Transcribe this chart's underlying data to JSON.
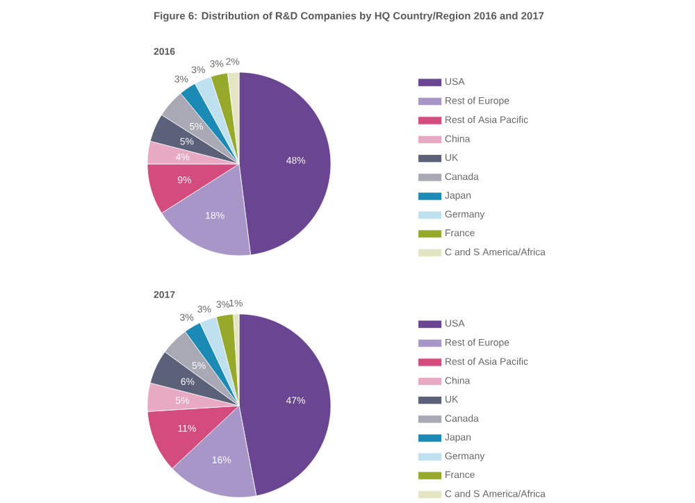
{
  "chart_data": [
    {
      "type": "pie",
      "title": "Figure 6: Distribution of R&D Companies by HQ Country/Region 2016 and 2017",
      "subtitle": "2016",
      "categories": [
        "USA",
        "Rest of Europe",
        "Rest of Asia Pacific",
        "China",
        "UK",
        "Canada",
        "Japan",
        "Germany",
        "France",
        "C and S America/Africa"
      ],
      "values": [
        48,
        18,
        9,
        4,
        5,
        5,
        3,
        3,
        3,
        2
      ],
      "value_labels": [
        "48%",
        "18%",
        "9%",
        "4%",
        "5%",
        "5%",
        "3%",
        "3%",
        "3%",
        "2%"
      ],
      "colors": [
        "#6a4592",
        "#a896c8",
        "#d44b7e",
        "#e8a9c3",
        "#5a6178",
        "#a9a9b5",
        "#1b8ab5",
        "#bfe0ee",
        "#97a92b",
        "#e3e5c5"
      ],
      "legend": "right"
    },
    {
      "type": "pie",
      "title": "2017",
      "categories": [
        "USA",
        "Rest of Europe",
        "Rest of Asia Pacific",
        "China",
        "UK",
        "Canada",
        "Japan",
        "Germany",
        "France",
        "C and S America/Africa"
      ],
      "values": [
        47,
        16,
        11,
        5,
        6,
        5,
        3,
        3,
        3,
        1
      ],
      "value_labels": [
        "47%",
        "16%",
        "11%",
        "5%",
        "6%",
        "5%",
        "3%",
        "3%",
        "3%",
        "1%"
      ],
      "colors": [
        "#6a4592",
        "#a896c8",
        "#d44b7e",
        "#e8a9c3",
        "#5a6178",
        "#a9a9b5",
        "#1b8ab5",
        "#bfe0ee",
        "#97a92b",
        "#e3e5c5"
      ],
      "legend": "right"
    }
  ]
}
